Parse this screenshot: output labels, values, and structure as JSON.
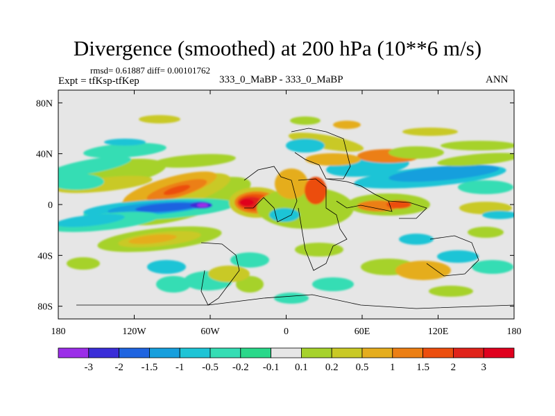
{
  "chart_data": {
    "type": "heatmap",
    "title": "Divergence (smoothed) at 200 hPa (10**6 m/s)",
    "stats_line": "rmsd= 0.61887 diff= 0.00101762",
    "experiment_label": "Expt = tfKsp-tfKep",
    "cases_label": "333_0_MaBP - 333_0_MaBP",
    "season": "ANN",
    "xlabel": "",
    "ylabel": "",
    "xlim": [
      -180,
      180
    ],
    "ylim": [
      -90,
      90
    ],
    "x_ticks": [
      {
        "value": -180,
        "label": "180"
      },
      {
        "value": -120,
        "label": "120W"
      },
      {
        "value": -60,
        "label": "60W"
      },
      {
        "value": 0,
        "label": "0"
      },
      {
        "value": 60,
        "label": "60E"
      },
      {
        "value": 120,
        "label": "120E"
      },
      {
        "value": 180,
        "label": "180"
      }
    ],
    "y_ticks": [
      {
        "value": 80,
        "label": "80N"
      },
      {
        "value": 40,
        "label": "40N"
      },
      {
        "value": 0,
        "label": "0"
      },
      {
        "value": -40,
        "label": "40S"
      },
      {
        "value": -80,
        "label": "80S"
      }
    ],
    "colorbar": {
      "orientation": "horizontal",
      "levels": [
        "-3",
        "-2",
        "-1.5",
        "-1",
        "-0.5",
        "-0.2",
        "-0.1",
        "0.1",
        "0.2",
        "0.5",
        "1",
        "1.5",
        "2",
        "3"
      ],
      "colors": [
        "#9b2ee8",
        "#3a2dd8",
        "#1f64e0",
        "#179fdd",
        "#1ec4d6",
        "#35ddb4",
        "#2ad88a",
        "#e6e6e6",
        "#a6d22c",
        "#c9c926",
        "#e5ad1e",
        "#ec7f14",
        "#ec4e0e",
        "#e0231a",
        "#e0001e"
      ]
    },
    "background_value_color": "#e6e6e6",
    "features": [
      {
        "name": "tropical divergence maximum",
        "lon": -32,
        "lat": 0,
        "value": 3
      },
      {
        "name": "tropical convergence minimum",
        "lon": -62,
        "lat": -1,
        "value": -3
      },
      {
        "name": "southern positive band",
        "lon": -75,
        "lat": -22,
        "value": 1
      },
      {
        "name": "eastern pacific positive tongue",
        "lon": -90,
        "lat": 8,
        "value": 1.5
      },
      {
        "name": "indian ocean positive patch",
        "lon": 75,
        "lat": 0,
        "value": 1
      },
      {
        "name": "northern negative band",
        "lon": 110,
        "lat": 12,
        "value": -1
      }
    ]
  }
}
